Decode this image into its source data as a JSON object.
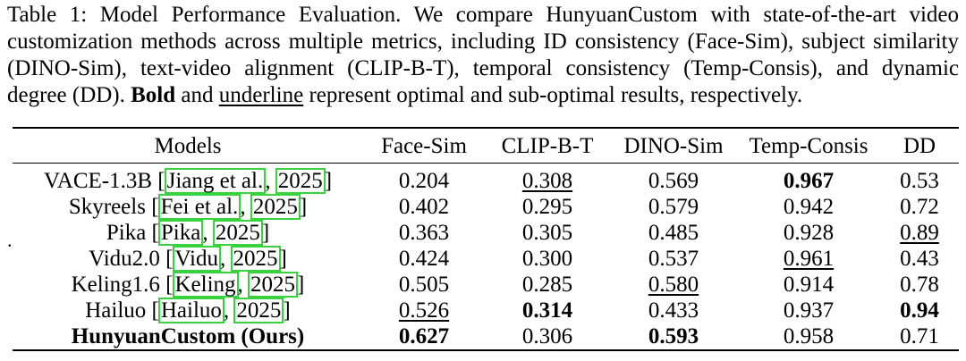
{
  "caption": {
    "label": "Table 1:",
    "text_1": "Model Performance Evaluation. We compare HunyuanCustom with state-of-the-art video customization methods across multiple metrics, including ID consistency (Face-Sim), subject similarity (DINO-Sim), text-video alignment (CLIP-B-T), temporal consistency (Temp-Consis), and dynamic degree (DD).",
    "bold_word": "Bold",
    "and_word": "and",
    "underline_word": "underline",
    "text_2": "represent optimal and sub-optimal results, respectively."
  },
  "margin_mark": ".",
  "table": {
    "headers": [
      "Models",
      "Face-Sim",
      "CLIP-B-T",
      "DINO-Sim",
      "Temp-Consis",
      "DD"
    ],
    "rows": [
      {
        "model": "VACE-1.3B",
        "cite_author": "Jiang et al.",
        "cite_year": "2025",
        "values": [
          "0.204",
          "0.308",
          "0.569",
          "0.967",
          "0.53"
        ]
      },
      {
        "model": "Skyreels",
        "cite_author": "Fei et al.",
        "cite_year": "2025",
        "values": [
          "0.402",
          "0.295",
          "0.579",
          "0.942",
          "0.72"
        ]
      },
      {
        "model": "Pika",
        "cite_author": "Pika",
        "cite_year": "2025",
        "values": [
          "0.363",
          "0.305",
          "0.485",
          "0.928",
          "0.89"
        ]
      },
      {
        "model": "Vidu2.0",
        "cite_author": "Vidu",
        "cite_year": "2025",
        "values": [
          "0.424",
          "0.300",
          "0.537",
          "0.961",
          "0.43"
        ]
      },
      {
        "model": "Keling1.6",
        "cite_author": "Keling",
        "cite_year": "2025",
        "values": [
          "0.505",
          "0.285",
          "0.580",
          "0.914",
          "0.78"
        ]
      },
      {
        "model": "Hailuo",
        "cite_author": "Hailuo",
        "cite_year": "2025",
        "values": [
          "0.526",
          "0.314",
          "0.433",
          "0.937",
          "0.94"
        ]
      }
    ],
    "ours": {
      "model": "HunyuanCustom (Ours)",
      "values": [
        "0.627",
        "0.306",
        "0.593",
        "0.958",
        "0.71"
      ]
    }
  }
}
